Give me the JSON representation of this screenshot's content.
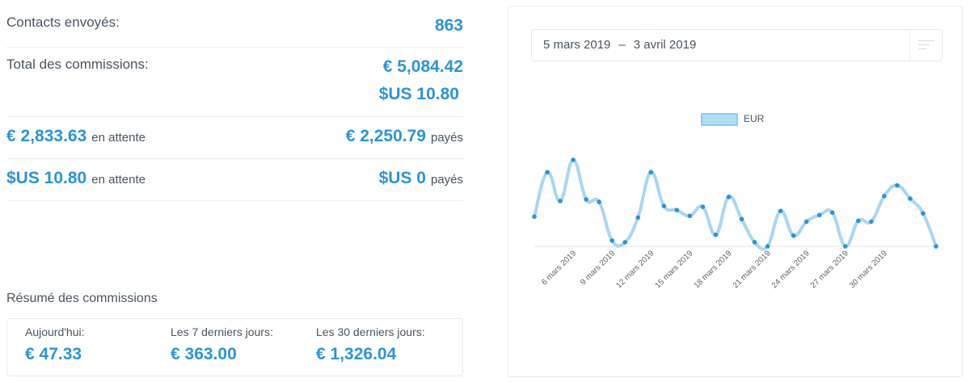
{
  "contacts": {
    "label": "Contacts envoyés:",
    "value": "863"
  },
  "total": {
    "label": "Total des commissions:",
    "eur": "€ 5,084.42",
    "usd": "$US 10.80"
  },
  "eur_status": {
    "pending_amount": "€ 2,833.63",
    "pending_label": "en attente",
    "paid_amount": "€ 2,250.79",
    "paid_label": "payés"
  },
  "usd_status": {
    "pending_amount": "$US 10.80",
    "pending_label": "en attente",
    "paid_amount": "$US 0",
    "paid_label": "payés"
  },
  "summary": {
    "title": "Résumé des commissions",
    "items": [
      {
        "label": "Aujourd'hui:",
        "value": "€ 47.33"
      },
      {
        "label": "Les 7 derniers jours:",
        "value": "€ 363.00"
      },
      {
        "label": "Les 30 derniers jours:",
        "value": "€ 1,326.04"
      }
    ]
  },
  "date_range": {
    "start": "5 mars 2019",
    "separator": "–",
    "end": "3 avril 2019"
  },
  "colors": {
    "accent": "#2c95d4",
    "line": "#a9d6f2",
    "point": "#2c95d4"
  },
  "chart_data": {
    "type": "line",
    "series": [
      {
        "name": "EUR",
        "values": [
          36,
          90,
          55,
          105,
          57,
          54,
          7,
          5,
          35,
          90,
          49,
          44,
          37,
          48,
          14,
          60,
          33,
          5,
          0,
          43,
          13,
          30,
          38,
          41,
          0,
          31,
          30,
          61,
          74,
          58,
          40,
          0
        ]
      }
    ],
    "x_tick_labels": [
      "6 mars 2019",
      "9 mars 2019",
      "12 mars 2019",
      "15 mars 2019",
      "18 mars 2019",
      "21 mars 2019",
      "24 mars 2019",
      "27 mars 2019",
      "30 mars 2019"
    ],
    "x_tick_indices": [
      3,
      6,
      9,
      12,
      15,
      18,
      21,
      24,
      27
    ],
    "legend": "top",
    "grid": false
  }
}
